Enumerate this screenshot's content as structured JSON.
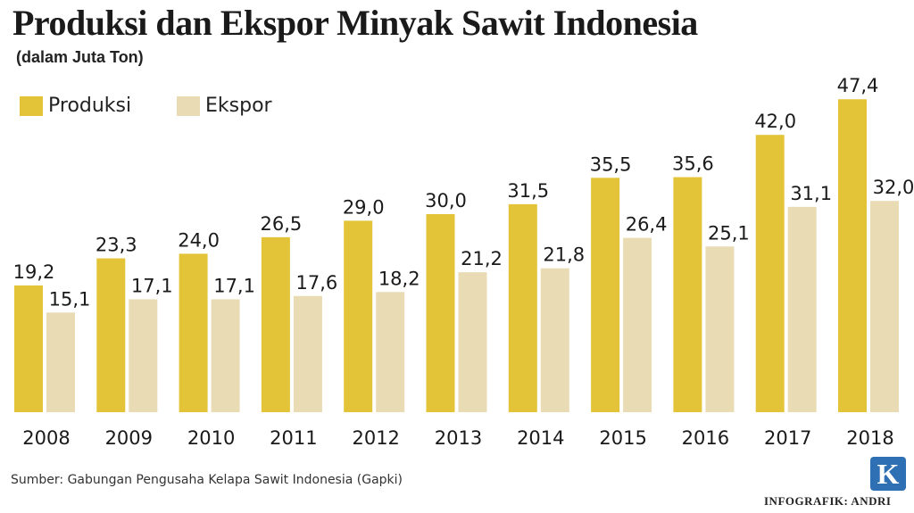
{
  "header": {
    "title": "Produksi dan Ekspor Minyak Sawit Indonesia",
    "subtitle": "(dalam Juta Ton)"
  },
  "colors": {
    "produksi": "#e3c438",
    "ekspor": "#e9dbb4",
    "text": "#1a1a1a",
    "logo": "#2f6fb3"
  },
  "chart_data": {
    "type": "bar",
    "title": "Produksi dan Ekspor Minyak Sawit Indonesia",
    "subtitle": "(dalam Juta Ton)",
    "xlabel": "",
    "ylabel": "",
    "ylim": [
      0,
      50
    ],
    "grid": false,
    "legend_position": "top-left",
    "categories": [
      "2008",
      "2009",
      "2010",
      "2011",
      "2012",
      "2013",
      "2014",
      "2015",
      "2016",
      "2017",
      "2018"
    ],
    "series": [
      {
        "name": "Produksi",
        "values": [
          19.2,
          23.3,
          24.0,
          26.5,
          29.0,
          30.0,
          31.5,
          35.5,
          35.6,
          42.0,
          47.4
        ],
        "labels": [
          "19,2",
          "23,3",
          "24,0",
          "26,5",
          "29,0",
          "30,0",
          "31,5",
          "35,5",
          "35,6",
          "42,0",
          "47,4"
        ]
      },
      {
        "name": "Ekspor",
        "values": [
          15.1,
          17.1,
          17.1,
          17.6,
          18.2,
          21.2,
          21.8,
          26.4,
          25.1,
          31.1,
          32.0
        ],
        "labels": [
          "15,1",
          "17,1",
          "17,1",
          "17,6",
          "18,2",
          "21,2",
          "21,8",
          "26,4",
          "25,1",
          "31,1",
          "32,0"
        ]
      }
    ]
  },
  "legend": {
    "items": [
      {
        "label": "Produksi"
      },
      {
        "label": "Ekspor"
      }
    ]
  },
  "footer": {
    "source": "Sumber: Gabungan Pengusaha Kelapa Sawit Indonesia (Gapki)",
    "credit": "INFOGRAFIK: ANDRI",
    "logo_letter": "K"
  }
}
